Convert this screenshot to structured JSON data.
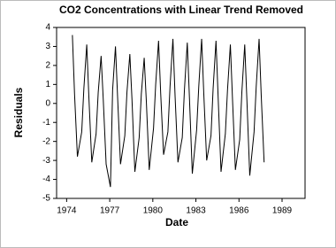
{
  "chart_data": {
    "type": "line",
    "title": "CO2 Concentrations with Linear Trend Removed",
    "xlabel": "Date",
    "ylabel": "Residuals",
    "x": [
      1974.4,
      1974.55,
      1974.75,
      1975.05,
      1975.2,
      1975.4,
      1975.55,
      1975.75,
      1976.05,
      1976.2,
      1976.4,
      1976.55,
      1976.75,
      1977.05,
      1977.2,
      1977.4,
      1977.55,
      1977.75,
      1978.05,
      1978.2,
      1978.4,
      1978.55,
      1978.75,
      1979.05,
      1979.2,
      1979.4,
      1979.55,
      1979.75,
      1980.05,
      1980.2,
      1980.4,
      1980.55,
      1980.75,
      1981.05,
      1981.2,
      1981.4,
      1981.55,
      1981.75,
      1982.05,
      1982.2,
      1982.4,
      1982.55,
      1982.75,
      1983.05,
      1983.2,
      1983.4,
      1983.55,
      1983.75,
      1984.05,
      1984.2,
      1984.4,
      1984.55,
      1984.75,
      1985.05,
      1985.2,
      1985.4,
      1985.55,
      1985.75,
      1986.05,
      1986.2,
      1986.4,
      1986.55,
      1986.75,
      1987.05,
      1987.2,
      1987.4,
      1987.55,
      1987.75
    ],
    "series": [
      {
        "name": "Residuals",
        "color": "#000000",
        "values": [
          3.6,
          0.5,
          -2.8,
          -1.5,
          0.8,
          3.1,
          0.3,
          -3.1,
          -1.6,
          0.6,
          2.5,
          0.2,
          -3.2,
          -4.4,
          0.7,
          3.0,
          0.3,
          -3.2,
          -1.7,
          0.6,
          2.6,
          0.2,
          -3.6,
          -1.8,
          0.5,
          2.4,
          0.1,
          -3.5,
          -1.3,
          1.0,
          3.3,
          0.5,
          -2.7,
          -1.5,
          0.9,
          3.4,
          0.4,
          -3.1,
          -1.8,
          0.7,
          3.2,
          0.3,
          -3.7,
          -1.4,
          0.9,
          3.4,
          0.5,
          -3.0,
          -1.7,
          0.8,
          3.3,
          0.3,
          -3.6,
          -1.6,
          0.7,
          3.1,
          0.2,
          -3.5,
          -1.9,
          0.6,
          3.1,
          0.2,
          -3.8,
          -1.5,
          0.9,
          3.4,
          0.4,
          -3.1
        ]
      }
    ],
    "xlim": [
      1973.3,
      1990.6
    ],
    "ylim": [
      -5,
      4
    ],
    "xticks": [
      1974,
      1977,
      1980,
      1983,
      1986,
      1989
    ],
    "yticks": [
      -5,
      -4,
      -3,
      -2,
      -1,
      0,
      1,
      2,
      3,
      4
    ]
  }
}
